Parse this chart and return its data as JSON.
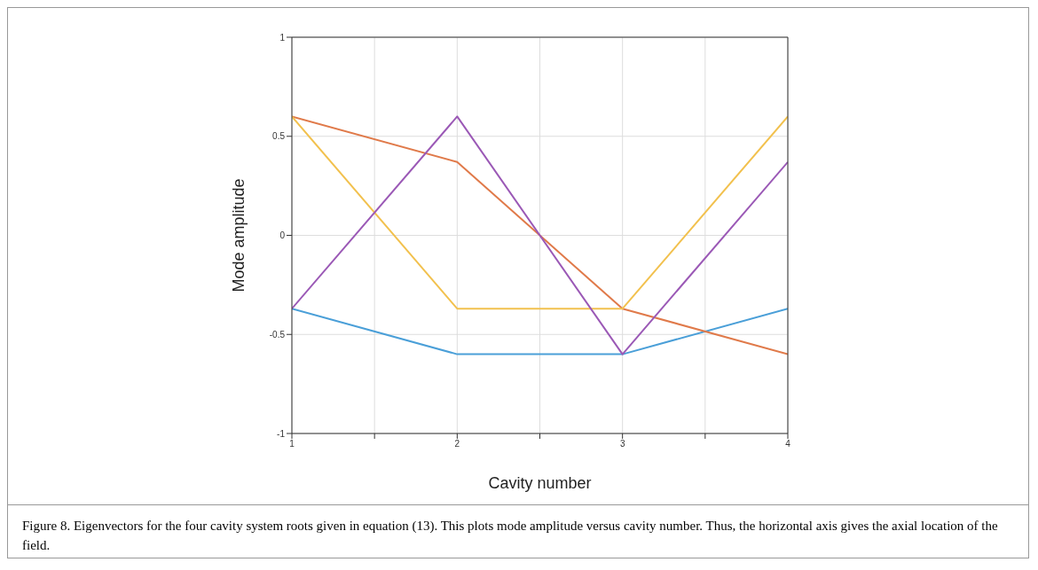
{
  "chart_data": {
    "type": "line",
    "xlabel": "Cavity number",
    "ylabel": "Mode amplitude",
    "x": [
      1,
      2,
      3,
      4
    ],
    "series": [
      {
        "color": "#4a9fd8",
        "values": [
          -0.37,
          -0.6,
          -0.6,
          -0.37
        ]
      },
      {
        "color": "#e07a4a",
        "values": [
          0.6,
          0.37,
          -0.37,
          -0.6
        ]
      },
      {
        "color": "#f2c14e",
        "values": [
          0.6,
          -0.37,
          -0.37,
          0.6
        ]
      },
      {
        "color": "#9b59b6",
        "values": [
          -0.37,
          0.6,
          -0.6,
          0.37
        ]
      }
    ],
    "xlim": [
      1,
      4
    ],
    "xticks": [
      1,
      {
        "value": 1.5,
        "label": null
      },
      2,
      {
        "value": 2.5,
        "label": null
      },
      3,
      {
        "value": 3.5,
        "label": null
      },
      4
    ],
    "ylim": [
      -1,
      1
    ],
    "yticks": [
      -1,
      -0.5,
      0,
      0.5,
      1
    ],
    "grid": true,
    "marker": "none",
    "line_style": "solid",
    "annotations": [
      "Figure 8. Eigenvectors for the four cavity system roots given in equation (13). This plots mode amplitude versus cavity number. Thus, the horizontal axis gives the axial location of the field."
    ]
  }
}
